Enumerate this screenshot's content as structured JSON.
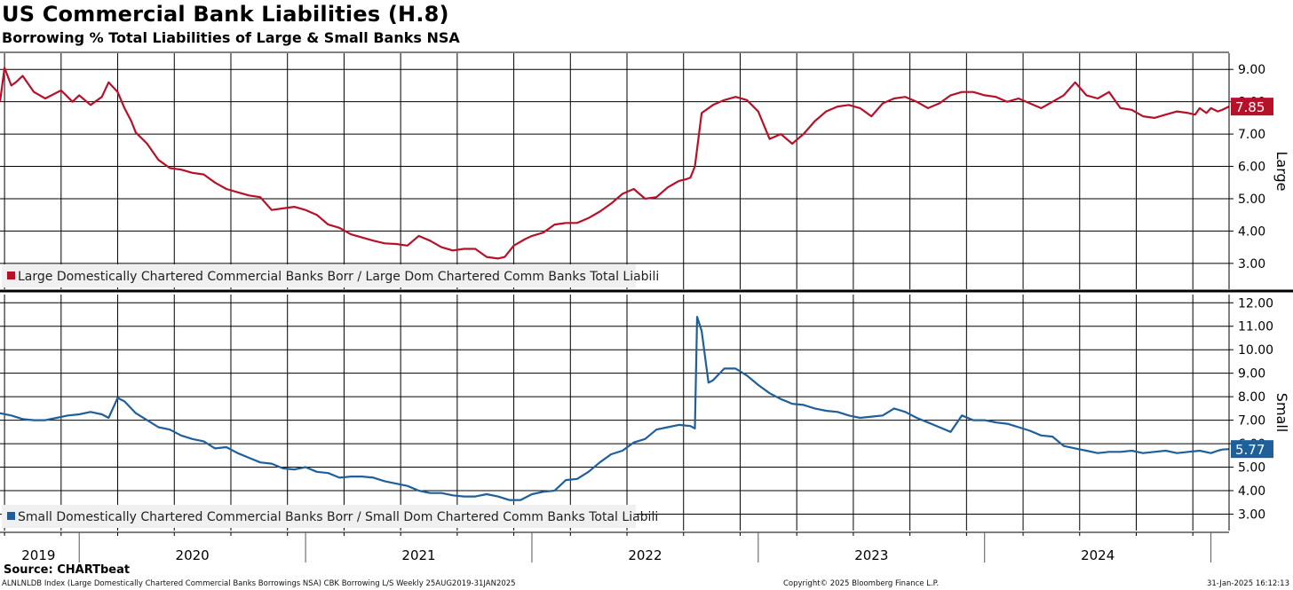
{
  "title": "US Commercial Bank Liabilities (H.8)",
  "subtitle": "Borrowing % Total Liabilities of Large & Small Banks NSA",
  "source": "Source: CHARTbeat",
  "footer": {
    "left": "ALNLNLDB Index (Large Domestically Chartered Commercial Banks Borrowings NSA) CBK Borrowing L/S  Weekly 25AUG2019-31JAN2025",
    "middle": "Copyright© 2025 Bloomberg Finance L.P.",
    "right": "31-Jan-2025 16:12:13"
  },
  "colors": {
    "large": "#b5122a",
    "small": "#1f5f9a",
    "grid": "#000000"
  },
  "chart_data": {
    "type": "line",
    "x_axis": {
      "labels": [
        "2019",
        "2020",
        "2021",
        "2022",
        "2023",
        "2024"
      ],
      "range": [
        2019.65,
        2025.08
      ],
      "label_positions": [
        2019.82,
        2020.5,
        2021.5,
        2022.5,
        2023.5,
        2024.5
      ],
      "year_ticks": [
        2020,
        2021,
        2022,
        2023,
        2024,
        2025
      ],
      "gridlines": [
        2019.67,
        2019.92,
        2020.17,
        2020.42,
        2020.67,
        2020.92,
        2021.17,
        2021.42,
        2021.67,
        2021.92,
        2022.17,
        2022.42,
        2022.67,
        2022.92,
        2023.17,
        2023.42,
        2023.67,
        2023.92,
        2024.17,
        2024.42,
        2024.67,
        2024.92
      ]
    },
    "panels": [
      {
        "name": "large",
        "axis_label": "Large",
        "ylim": [
          2.2,
          9.5
        ],
        "ticks": [
          "3.00",
          "4.00",
          "5.00",
          "6.00",
          "7.00",
          "8.00",
          "9.00"
        ],
        "last_value": "7.85",
        "legend": "Large Domestically Chartered Commercial Banks Borr / Large Dom Chartered Comm Banks Total Liabili",
        "series": {
          "x": [
            2019.65,
            2019.67,
            2019.7,
            2019.72,
            2019.75,
            2019.8,
            2019.85,
            2019.92,
            2019.97,
            2020.0,
            2020.05,
            2020.1,
            2020.13,
            2020.17,
            2020.2,
            2020.23,
            2020.25,
            2020.3,
            2020.35,
            2020.4,
            2020.45,
            2020.5,
            2020.55,
            2020.6,
            2020.65,
            2020.7,
            2020.75,
            2020.8,
            2020.85,
            2020.9,
            2020.95,
            2021.0,
            2021.05,
            2021.1,
            2021.15,
            2021.2,
            2021.25,
            2021.3,
            2021.35,
            2021.4,
            2021.45,
            2021.5,
            2021.55,
            2021.6,
            2021.65,
            2021.7,
            2021.75,
            2021.8,
            2021.85,
            2021.88,
            2021.92,
            2021.97,
            2022.0,
            2022.05,
            2022.1,
            2022.15,
            2022.2,
            2022.25,
            2022.3,
            2022.35,
            2022.4,
            2022.45,
            2022.5,
            2022.55,
            2022.6,
            2022.65,
            2022.68,
            2022.7,
            2022.72,
            2022.75,
            2022.8,
            2022.85,
            2022.9,
            2022.95,
            2023.0,
            2023.05,
            2023.1,
            2023.15,
            2023.2,
            2023.25,
            2023.3,
            2023.35,
            2023.4,
            2023.45,
            2023.5,
            2023.55,
            2023.6,
            2023.65,
            2023.7,
            2023.75,
            2023.8,
            2023.85,
            2023.9,
            2023.95,
            2024.0,
            2024.05,
            2024.1,
            2024.15,
            2024.2,
            2024.25,
            2024.3,
            2024.35,
            2024.4,
            2024.45,
            2024.5,
            2024.55,
            2024.6,
            2024.65,
            2024.7,
            2024.75,
            2024.8,
            2024.85,
            2024.9,
            2024.93,
            2024.95,
            2024.98,
            2025.0,
            2025.03,
            2025.05,
            2025.08
          ],
          "y": [
            8.0,
            9.05,
            8.5,
            8.6,
            8.8,
            8.3,
            8.1,
            8.35,
            8.0,
            8.2,
            7.9,
            8.15,
            8.6,
            8.3,
            7.8,
            7.4,
            7.05,
            6.7,
            6.2,
            5.95,
            5.9,
            5.8,
            5.75,
            5.5,
            5.3,
            5.2,
            5.1,
            5.05,
            4.65,
            4.7,
            4.75,
            4.65,
            4.5,
            4.2,
            4.1,
            3.9,
            3.8,
            3.7,
            3.62,
            3.6,
            3.55,
            3.85,
            3.7,
            3.5,
            3.4,
            3.45,
            3.45,
            3.2,
            3.15,
            3.2,
            3.55,
            3.75,
            3.85,
            3.95,
            4.2,
            4.25,
            4.25,
            4.4,
            4.6,
            4.85,
            5.15,
            5.3,
            5.0,
            5.05,
            5.35,
            5.55,
            5.6,
            5.65,
            6.0,
            7.65,
            7.9,
            8.05,
            8.15,
            8.05,
            7.7,
            6.85,
            7.0,
            6.7,
            7.0,
            7.4,
            7.7,
            7.85,
            7.9,
            7.8,
            7.55,
            7.95,
            8.1,
            8.15,
            8.0,
            7.8,
            7.95,
            8.2,
            8.3,
            8.3,
            8.2,
            8.15,
            8.0,
            8.1,
            7.95,
            7.8,
            8.0,
            8.2,
            8.6,
            8.2,
            8.1,
            8.3,
            7.8,
            7.75,
            7.55,
            7.5,
            7.6,
            7.7,
            7.65,
            7.6,
            7.8,
            7.65,
            7.8,
            7.7,
            7.75,
            7.85
          ]
        }
      },
      {
        "name": "small",
        "axis_label": "Small",
        "ylim": [
          2.3,
          12.35
        ],
        "ticks": [
          "3.00",
          "4.00",
          "5.00",
          "6.00",
          "7.00",
          "8.00",
          "9.00",
          "10.00",
          "11.00",
          "12.00"
        ],
        "last_value": "5.77",
        "legend": "Small Domestically Chartered Commercial Banks Borr / Small Dom Chartered Comm Banks Total Liabili",
        "series": {
          "x": [
            2019.65,
            2019.7,
            2019.75,
            2019.8,
            2019.85,
            2019.9,
            2019.95,
            2020.0,
            2020.05,
            2020.1,
            2020.13,
            2020.17,
            2020.2,
            2020.25,
            2020.3,
            2020.35,
            2020.4,
            2020.45,
            2020.5,
            2020.55,
            2020.6,
            2020.65,
            2020.7,
            2020.75,
            2020.8,
            2020.85,
            2020.9,
            2020.95,
            2021.0,
            2021.05,
            2021.1,
            2021.15,
            2021.2,
            2021.25,
            2021.3,
            2021.35,
            2021.4,
            2021.45,
            2021.5,
            2021.55,
            2021.6,
            2021.65,
            2021.7,
            2021.75,
            2021.8,
            2021.85,
            2021.9,
            2021.95,
            2022.0,
            2022.05,
            2022.1,
            2022.15,
            2022.2,
            2022.25,
            2022.3,
            2022.35,
            2022.4,
            2022.45,
            2022.5,
            2022.55,
            2022.6,
            2022.65,
            2022.7,
            2022.72,
            2022.73,
            2022.75,
            2022.78,
            2022.8,
            2022.85,
            2022.9,
            2022.95,
            2023.0,
            2023.05,
            2023.1,
            2023.15,
            2023.2,
            2023.25,
            2023.3,
            2023.35,
            2023.4,
            2023.45,
            2023.5,
            2023.55,
            2023.6,
            2023.65,
            2023.7,
            2023.75,
            2023.8,
            2023.85,
            2023.9,
            2023.95,
            2024.0,
            2024.05,
            2024.1,
            2024.15,
            2024.2,
            2024.25,
            2024.3,
            2024.35,
            2024.4,
            2024.45,
            2024.5,
            2024.55,
            2024.6,
            2024.65,
            2024.7,
            2024.75,
            2024.8,
            2024.85,
            2024.9,
            2024.95,
            2025.0,
            2025.03,
            2025.05,
            2025.08
          ],
          "y": [
            7.3,
            7.2,
            7.05,
            7.0,
            7.0,
            7.1,
            7.2,
            7.25,
            7.35,
            7.25,
            7.1,
            7.95,
            7.8,
            7.3,
            7.0,
            6.7,
            6.6,
            6.35,
            6.2,
            6.1,
            5.8,
            5.85,
            5.6,
            5.4,
            5.2,
            5.15,
            4.95,
            4.9,
            5.0,
            4.8,
            4.75,
            4.55,
            4.6,
            4.6,
            4.55,
            4.4,
            4.3,
            4.2,
            4.0,
            3.9,
            3.9,
            3.8,
            3.75,
            3.75,
            3.85,
            3.75,
            3.6,
            3.6,
            3.85,
            3.95,
            4.0,
            4.45,
            4.5,
            4.8,
            5.2,
            5.55,
            5.7,
            6.05,
            6.2,
            6.6,
            6.7,
            6.8,
            6.75,
            6.65,
            11.4,
            10.8,
            8.6,
            8.7,
            9.2,
            9.2,
            8.9,
            8.5,
            8.15,
            7.9,
            7.7,
            7.65,
            7.5,
            7.4,
            7.35,
            7.2,
            7.1,
            7.15,
            7.2,
            7.5,
            7.35,
            7.1,
            6.9,
            6.7,
            6.5,
            7.2,
            7.0,
            7.0,
            6.9,
            6.85,
            6.7,
            6.55,
            6.35,
            6.3,
            5.9,
            5.8,
            5.7,
            5.6,
            5.65,
            5.65,
            5.7,
            5.6,
            5.65,
            5.7,
            5.6,
            5.65,
            5.7,
            5.6,
            5.7,
            5.75,
            5.77
          ]
        }
      }
    ]
  }
}
